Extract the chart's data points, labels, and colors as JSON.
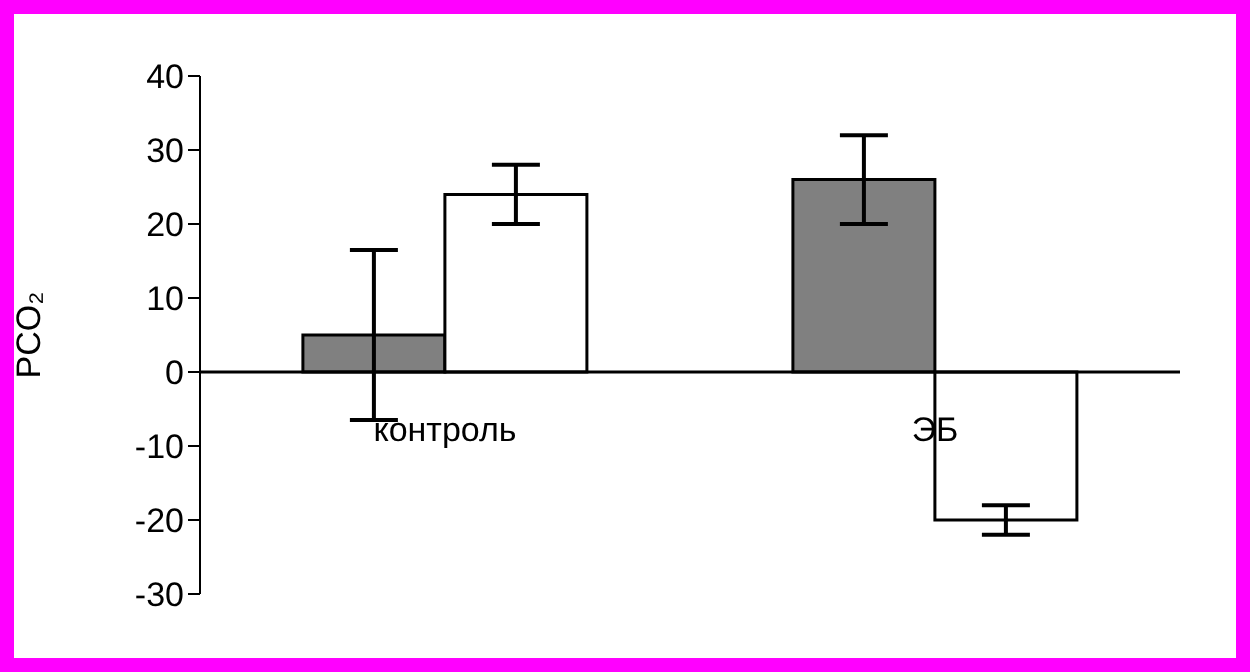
{
  "chart_data": {
    "type": "bar",
    "ylabel": "PCO₂",
    "categories": [
      "контроль",
      "ЭБ"
    ],
    "series": [
      {
        "color": "#808080",
        "values": [
          5,
          26
        ],
        "errors": [
          11.5,
          6
        ]
      },
      {
        "color": "#ffffff",
        "values": [
          24,
          -20
        ],
        "errors": [
          4,
          2
        ]
      }
    ],
    "ylim": [
      -30,
      40
    ],
    "yticks": [
      -30,
      -20,
      -10,
      0,
      10,
      20,
      30,
      40
    ],
    "grid": false,
    "legend": false
  }
}
